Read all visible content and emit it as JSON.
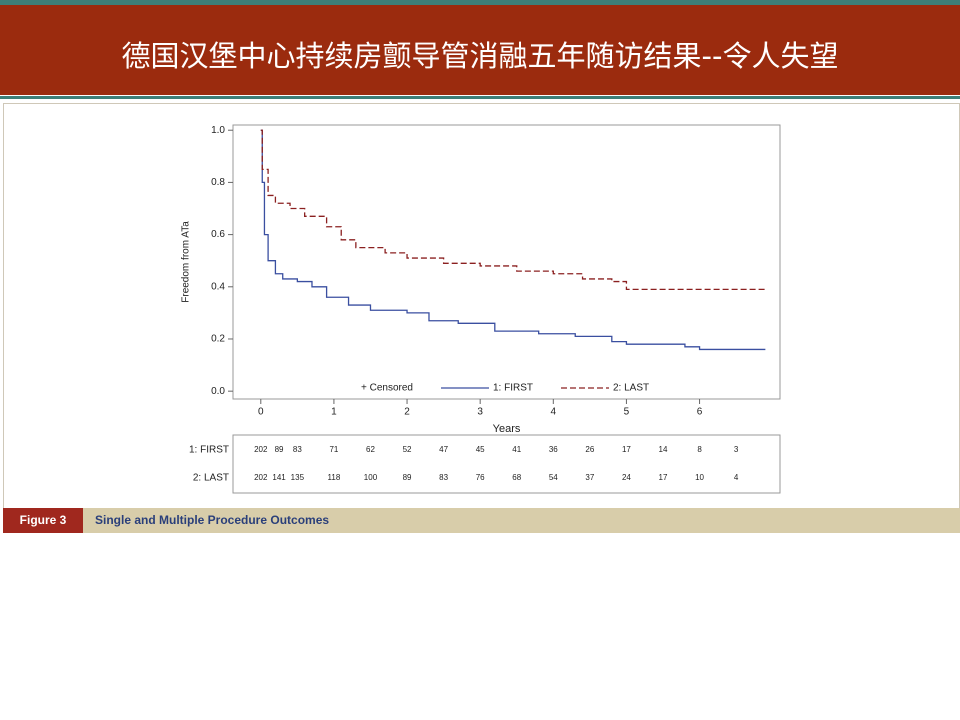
{
  "slide_title": "德国汉堡中心持续房颤导管消融五年随访结果--令人失望",
  "figure_label": "Figure 3",
  "figure_caption": "Single and Multiple Procedure Outcomes",
  "chart_data": {
    "type": "line",
    "step": true,
    "x_label": "Years",
    "y_label": "Freedom from ATa",
    "censored_label": "+ Censored",
    "xlim": [
      -0.38,
      7.1
    ],
    "ylim": [
      -0.03,
      1.02
    ],
    "xticks": [
      0,
      1,
      2,
      3,
      4,
      5,
      6
    ],
    "yticks": [
      {
        "value": 0,
        "label": "0.0"
      },
      0.2,
      0.4,
      0.6,
      0.8,
      {
        "value": 1,
        "label": "1.0"
      }
    ],
    "series": [
      {
        "name": "1: FIRST",
        "color": "#3a4fa0",
        "dash": false,
        "x": [
          0,
          0.02,
          0.05,
          0.1,
          0.2,
          0.3,
          0.5,
          0.7,
          0.9,
          1.2,
          1.5,
          2.0,
          2.3,
          2.7,
          3.2,
          3.8,
          4.3,
          4.8,
          5.0,
          5.8,
          6.0,
          6.9
        ],
        "values": [
          1.0,
          0.8,
          0.6,
          0.5,
          0.45,
          0.43,
          0.42,
          0.4,
          0.36,
          0.33,
          0.31,
          0.3,
          0.27,
          0.26,
          0.23,
          0.22,
          0.21,
          0.19,
          0.18,
          0.17,
          0.16,
          0.16
        ]
      },
      {
        "name": "2: LAST",
        "color": "#8b2020",
        "dash": true,
        "x": [
          0,
          0.02,
          0.1,
          0.2,
          0.4,
          0.6,
          0.9,
          1.1,
          1.3,
          1.7,
          2.0,
          2.5,
          3.0,
          3.5,
          4.0,
          4.4,
          4.8,
          5.0,
          6.9
        ],
        "values": [
          1.0,
          0.85,
          0.75,
          0.72,
          0.7,
          0.67,
          0.63,
          0.58,
          0.55,
          0.53,
          0.51,
          0.49,
          0.48,
          0.46,
          0.45,
          0.43,
          0.42,
          0.39,
          0.385
        ]
      }
    ],
    "risk_table": {
      "times": [
        0,
        0.25,
        0.5,
        1,
        1.5,
        2,
        2.5,
        3,
        3.5,
        4,
        4.5,
        5,
        5.5,
        6,
        6.5
      ],
      "rows": [
        {
          "name": "1: FIRST",
          "values": [
            202,
            89,
            83,
            71,
            62,
            52,
            47,
            45,
            41,
            36,
            26,
            17,
            14,
            8,
            3
          ]
        },
        {
          "name": "2: LAST",
          "values": [
            202,
            141,
            135,
            118,
            100,
            89,
            83,
            76,
            68,
            54,
            37,
            24,
            17,
            10,
            4
          ]
        }
      ]
    }
  }
}
